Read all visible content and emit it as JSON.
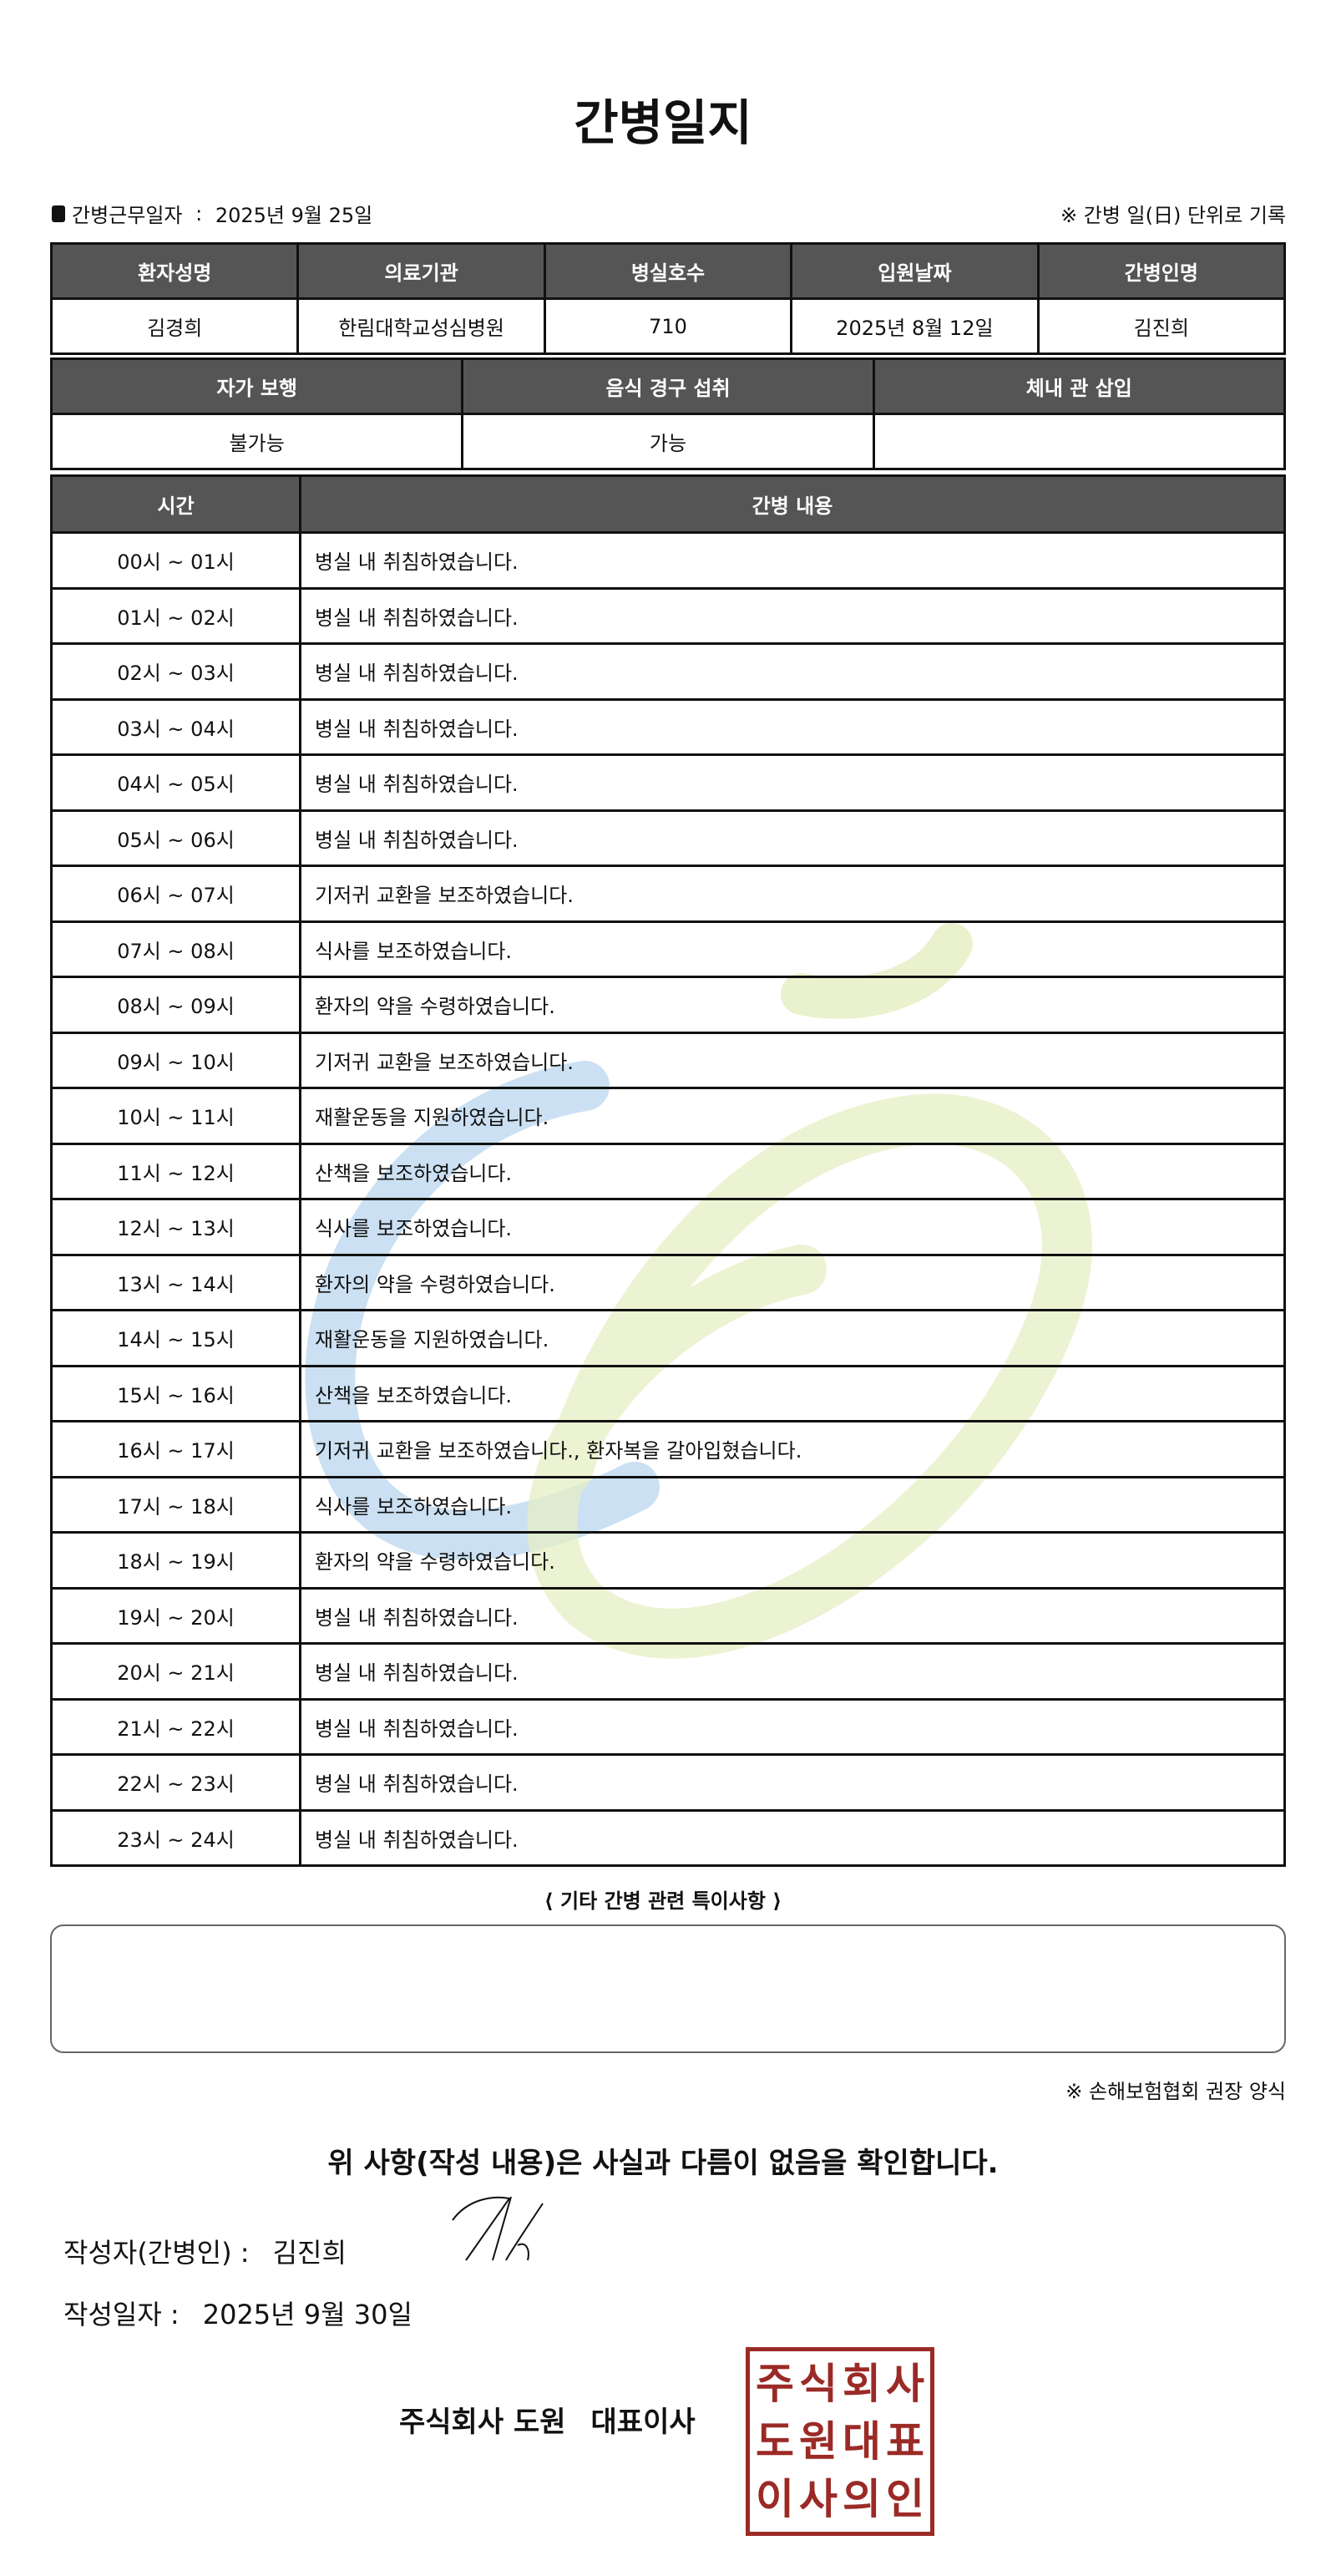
{
  "title": "간병일지",
  "header": {
    "work_date_label": "간병근무일자",
    "work_date": "2025년 9월 25일",
    "unit_note": "※ 간병 일(日) 단위로 기록"
  },
  "patient_table": {
    "headers": [
      "환자성명",
      "의료기관",
      "병실호수",
      "입원날짜",
      "간병인명"
    ],
    "values": [
      "김경희",
      "한림대학교성심병원",
      "710",
      "2025년 8월 12일",
      "김진희"
    ]
  },
  "status_table": {
    "headers": [
      "자가 보행",
      "음식 경구 섭취",
      "체내 관 삽입"
    ],
    "values": [
      "불가능",
      "가능",
      ""
    ]
  },
  "log_table": {
    "headers": [
      "시간",
      "간병 내용"
    ],
    "rows": [
      {
        "time": "00시 ~ 01시",
        "content": "병실 내 취침하였습니다."
      },
      {
        "time": "01시 ~ 02시",
        "content": "병실 내 취침하였습니다."
      },
      {
        "time": "02시 ~ 03시",
        "content": "병실 내 취침하였습니다."
      },
      {
        "time": "03시 ~ 04시",
        "content": "병실 내 취침하였습니다."
      },
      {
        "time": "04시 ~ 05시",
        "content": "병실 내 취침하였습니다."
      },
      {
        "time": "05시 ~ 06시",
        "content": "병실 내 취침하였습니다."
      },
      {
        "time": "06시 ~ 07시",
        "content": "기저귀 교환을 보조하였습니다."
      },
      {
        "time": "07시 ~ 08시",
        "content": "식사를 보조하였습니다."
      },
      {
        "time": "08시 ~ 09시",
        "content": "환자의 약을 수령하였습니다."
      },
      {
        "time": "09시 ~ 10시",
        "content": "기저귀 교환을 보조하였습니다."
      },
      {
        "time": "10시 ~ 11시",
        "content": "재활운동을 지원하였습니다."
      },
      {
        "time": "11시 ~ 12시",
        "content": "산책을 보조하였습니다."
      },
      {
        "time": "12시 ~ 13시",
        "content": "식사를 보조하였습니다."
      },
      {
        "time": "13시 ~ 14시",
        "content": "환자의 약을 수령하였습니다."
      },
      {
        "time": "14시 ~ 15시",
        "content": "재활운동을 지원하였습니다."
      },
      {
        "time": "15시 ~ 16시",
        "content": "산책을 보조하였습니다."
      },
      {
        "time": "16시 ~ 17시",
        "content": "기저귀 교환을 보조하였습니다., 환자복을 갈아입혔습니다."
      },
      {
        "time": "17시 ~ 18시",
        "content": "식사를 보조하였습니다."
      },
      {
        "time": "18시 ~ 19시",
        "content": "환자의 약을 수령하였습니다."
      },
      {
        "time": "19시 ~ 20시",
        "content": "병실 내 취침하였습니다."
      },
      {
        "time": "20시 ~ 21시",
        "content": "병실 내 취침하였습니다."
      },
      {
        "time": "21시 ~ 22시",
        "content": "병실 내 취침하였습니다."
      },
      {
        "time": "22시 ~ 23시",
        "content": "병실 내 취침하였습니다."
      },
      {
        "time": "23시 ~ 24시",
        "content": "병실 내 취침하였습니다."
      }
    ]
  },
  "notes": {
    "title": "⟨ 기타 간병 관련 특이사항 ⟩",
    "content": ""
  },
  "form_note": "※ 손해보험협회 권장 양식",
  "confirm_text": "위 사항(작성 내용)은 사실과 다름이 없음을 확인합니다.",
  "writer": {
    "label": "작성자(간병인) :",
    "name": "김진희"
  },
  "written_date": {
    "label": "작성일자 :",
    "value": "2025년 9월 30일"
  },
  "company": {
    "name": "주식회사 도원",
    "title": "대표이사"
  },
  "stamp_text": [
    "주",
    "식",
    "회",
    "사",
    "도",
    "원",
    "대",
    "표",
    "이",
    "사",
    "의",
    "인"
  ],
  "colors": {
    "header_bg": "#555555",
    "stamp": "#9b2a26",
    "watermark_blue": "#b9d6ee",
    "watermark_yellow": "#e6efc4"
  }
}
